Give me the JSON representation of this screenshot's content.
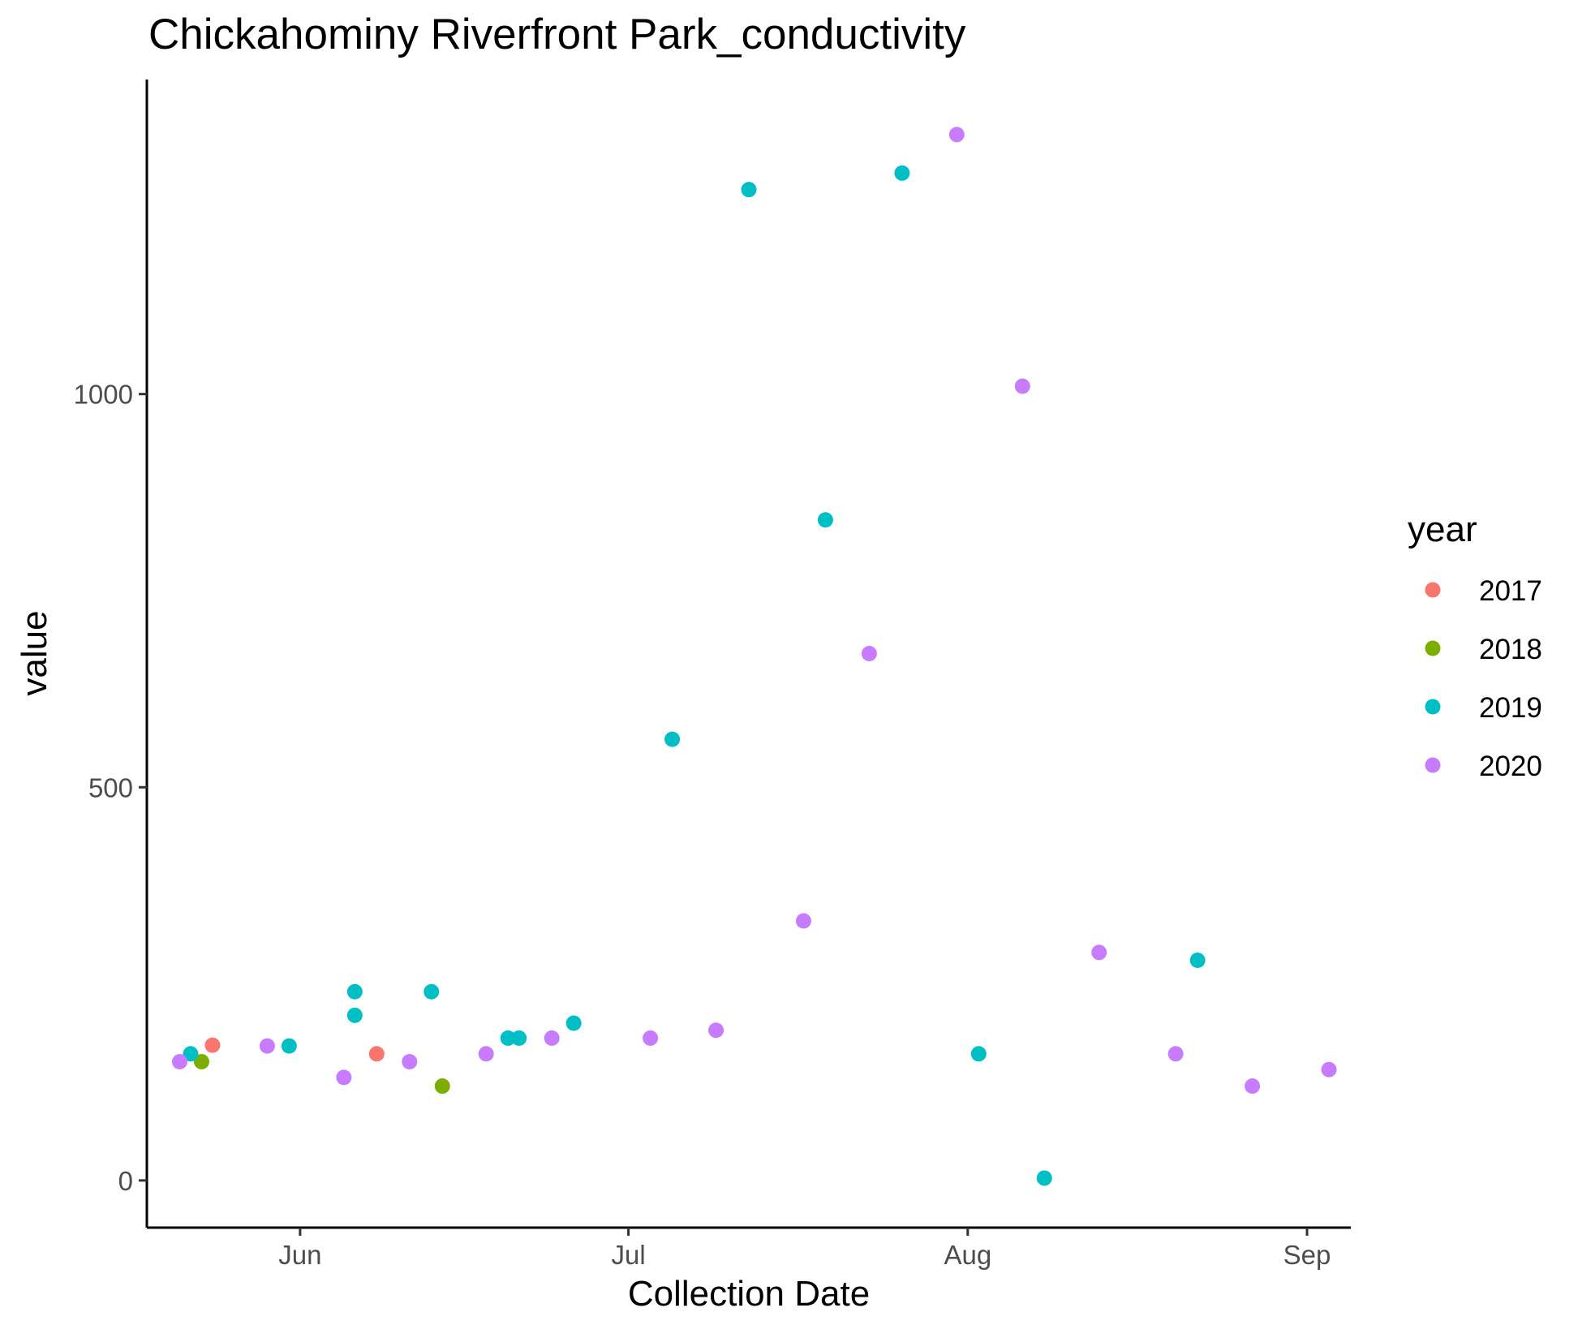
{
  "chart_data": {
    "type": "scatter",
    "title": "Chickahominy Riverfront Park_conductivity",
    "xlabel": "Collection Date",
    "ylabel": "value",
    "x_type": "date",
    "xlim": [
      "2020-05-18",
      "2020-09-05"
    ],
    "ylim": [
      -60,
      1400
    ],
    "x_ticks": [
      {
        "label": "Jun",
        "value": "2020-06-01"
      },
      {
        "label": "Jul",
        "value": "2020-07-01"
      },
      {
        "label": "Aug",
        "value": "2020-08-01"
      },
      {
        "label": "Sep",
        "value": "2020-09-01"
      }
    ],
    "y_ticks": [
      0,
      500,
      1000
    ],
    "grid": false,
    "legend": {
      "title": "year",
      "position": "right"
    },
    "series": [
      {
        "name": "2017",
        "color": "#F8766D",
        "points": [
          {
            "x": "2020-05-24",
            "y": 172
          },
          {
            "x": "2020-06-08",
            "y": 161
          }
        ]
      },
      {
        "name": "2018",
        "color": "#7CAE00",
        "points": [
          {
            "x": "2020-05-23",
            "y": 151
          },
          {
            "x": "2020-06-14",
            "y": 120
          }
        ]
      },
      {
        "name": "2019",
        "color": "#00BFC4",
        "points": [
          {
            "x": "2020-05-22",
            "y": 161
          },
          {
            "x": "2020-05-31",
            "y": 171
          },
          {
            "x": "2020-06-06",
            "y": 240
          },
          {
            "x": "2020-06-06",
            "y": 210
          },
          {
            "x": "2020-06-13",
            "y": 240
          },
          {
            "x": "2020-06-20",
            "y": 181
          },
          {
            "x": "2020-06-21",
            "y": 181
          },
          {
            "x": "2020-06-26",
            "y": 200
          },
          {
            "x": "2020-07-05",
            "y": 561
          },
          {
            "x": "2020-07-12",
            "y": 1260
          },
          {
            "x": "2020-07-19",
            "y": 840
          },
          {
            "x": "2020-07-26",
            "y": 1281
          },
          {
            "x": "2020-08-02",
            "y": 161
          },
          {
            "x": "2020-08-08",
            "y": 3
          },
          {
            "x": "2020-08-22",
            "y": 280
          }
        ]
      },
      {
        "name": "2020",
        "color": "#C77CFF",
        "points": [
          {
            "x": "2020-05-21",
            "y": 151
          },
          {
            "x": "2020-05-29",
            "y": 171
          },
          {
            "x": "2020-06-05",
            "y": 131
          },
          {
            "x": "2020-06-11",
            "y": 151
          },
          {
            "x": "2020-06-18",
            "y": 161
          },
          {
            "x": "2020-06-24",
            "y": 181
          },
          {
            "x": "2020-07-03",
            "y": 181
          },
          {
            "x": "2020-07-09",
            "y": 191
          },
          {
            "x": "2020-07-17",
            "y": 330
          },
          {
            "x": "2020-07-23",
            "y": 670
          },
          {
            "x": "2020-07-31",
            "y": 1330
          },
          {
            "x": "2020-08-06",
            "y": 1010
          },
          {
            "x": "2020-08-13",
            "y": 290
          },
          {
            "x": "2020-08-20",
            "y": 161
          },
          {
            "x": "2020-08-27",
            "y": 120
          },
          {
            "x": "2020-09-03",
            "y": 141
          }
        ]
      }
    ]
  }
}
